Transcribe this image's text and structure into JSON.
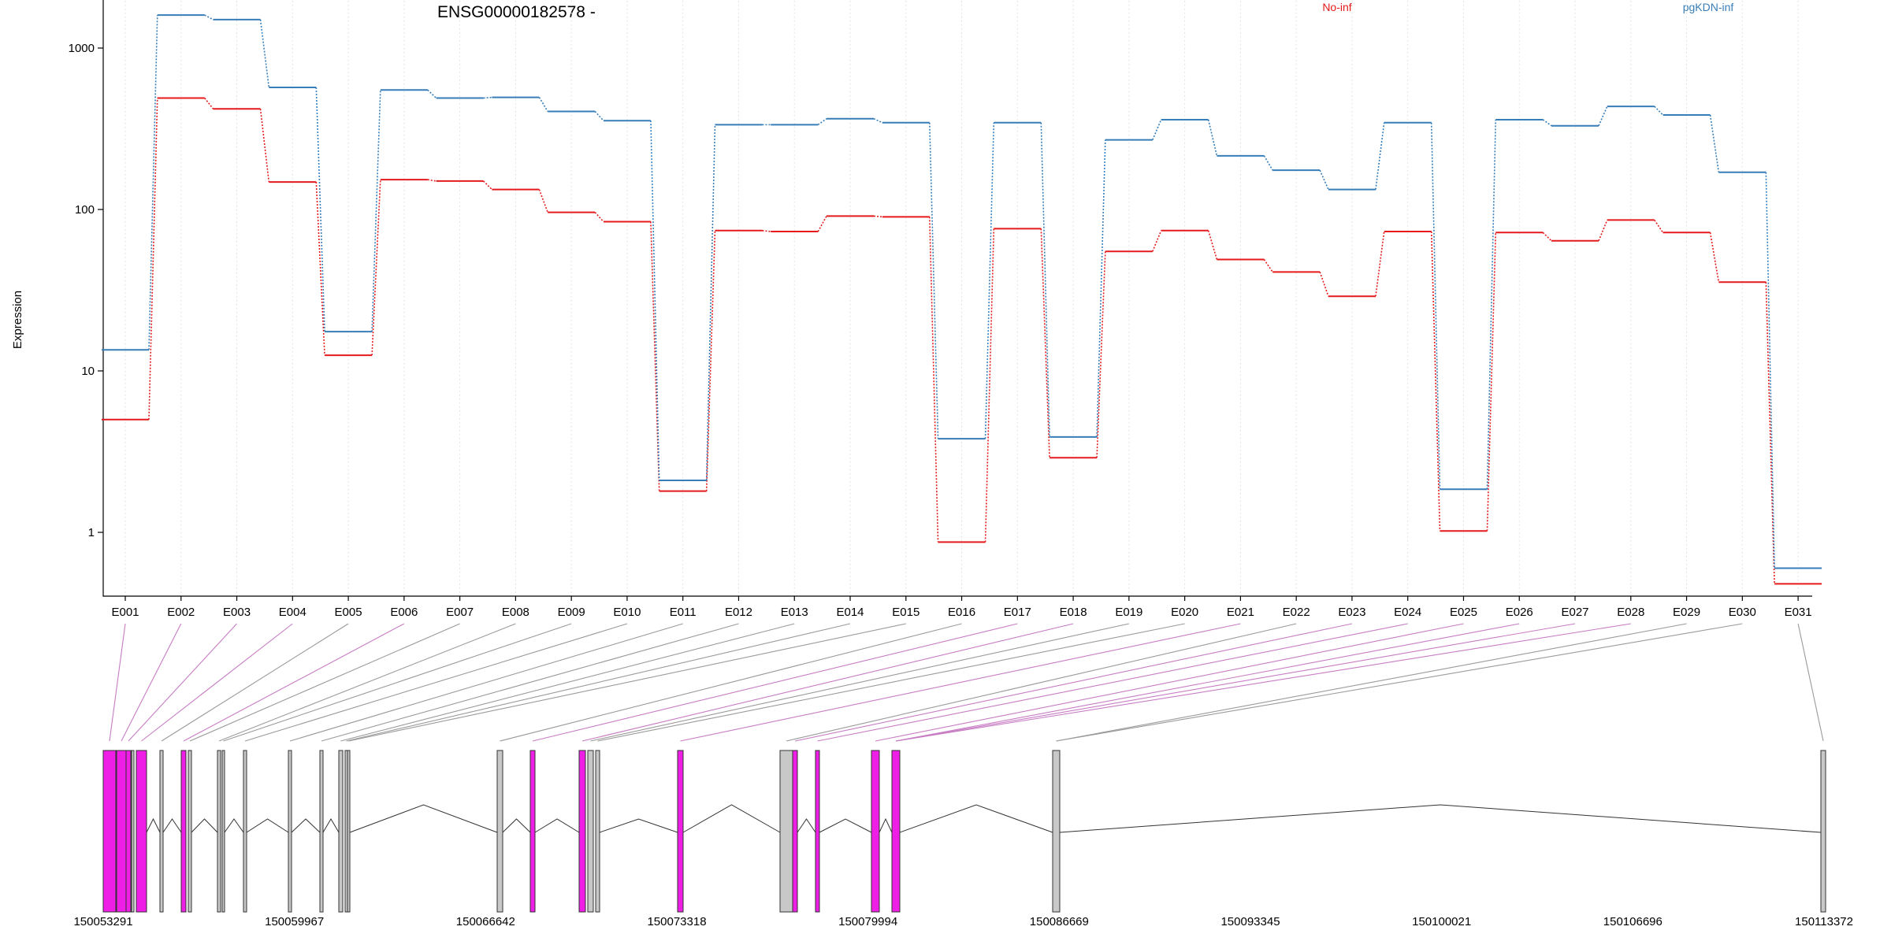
{
  "chart_data": {
    "type": "line",
    "title": "ENSG00000182578 -",
    "ylabel": "Expression",
    "xlabel": "",
    "y_scale": "log",
    "ylim": [
      0.4,
      2200
    ],
    "y_ticks": [
      1,
      10,
      100,
      1000
    ],
    "y_tick_labels": [
      "1",
      "10",
      "100",
      "1000"
    ],
    "grid": "vertical dotted",
    "legend_placement": "top",
    "categories": [
      "E001",
      "E002",
      "E003",
      "E004",
      "E005",
      "E006",
      "E007",
      "E008",
      "E009",
      "E010",
      "E011",
      "E012",
      "E013",
      "E014",
      "E015",
      "E016",
      "E017",
      "E018",
      "E019",
      "E020",
      "E021",
      "E022",
      "E023",
      "E024",
      "E025",
      "E026",
      "E027",
      "E028",
      "E029",
      "E030",
      "E031"
    ],
    "series": [
      {
        "name": "No-inf",
        "color": "#e41a1c",
        "values": [
          5.0,
          490,
          420,
          148,
          12.5,
          153,
          150,
          133,
          96,
          84,
          1.8,
          74,
          73,
          91,
          90,
          0.87,
          76,
          2.9,
          55,
          74,
          49,
          41,
          29,
          73,
          1.02,
          72,
          64,
          86,
          72,
          35.5,
          0.48
        ]
      },
      {
        "name": "pgKDN-inf",
        "color": "#377eb8",
        "values": [
          13.5,
          1600,
          1500,
          570,
          17.5,
          550,
          490,
          495,
          405,
          355,
          2.1,
          335,
          335,
          365,
          345,
          3.8,
          345,
          3.9,
          270,
          360,
          215,
          175,
          133,
          345,
          1.85,
          360,
          330,
          435,
          385,
          170,
          0.6
        ]
      }
    ],
    "gene_model": {
      "genomic_start": 150053291,
      "genomic_end": 150113372,
      "axis_ticks": [
        "150053291",
        "150059967",
        "150066642",
        "150073318",
        "150079994",
        "150086669",
        "150093345",
        "150100021",
        "150106696",
        "150113372"
      ],
      "exon_fill_colors": {
        "significant": "#ee1ee6",
        "other": "#c8c8c8",
        "outline": "#ffffff"
      }
    }
  }
}
